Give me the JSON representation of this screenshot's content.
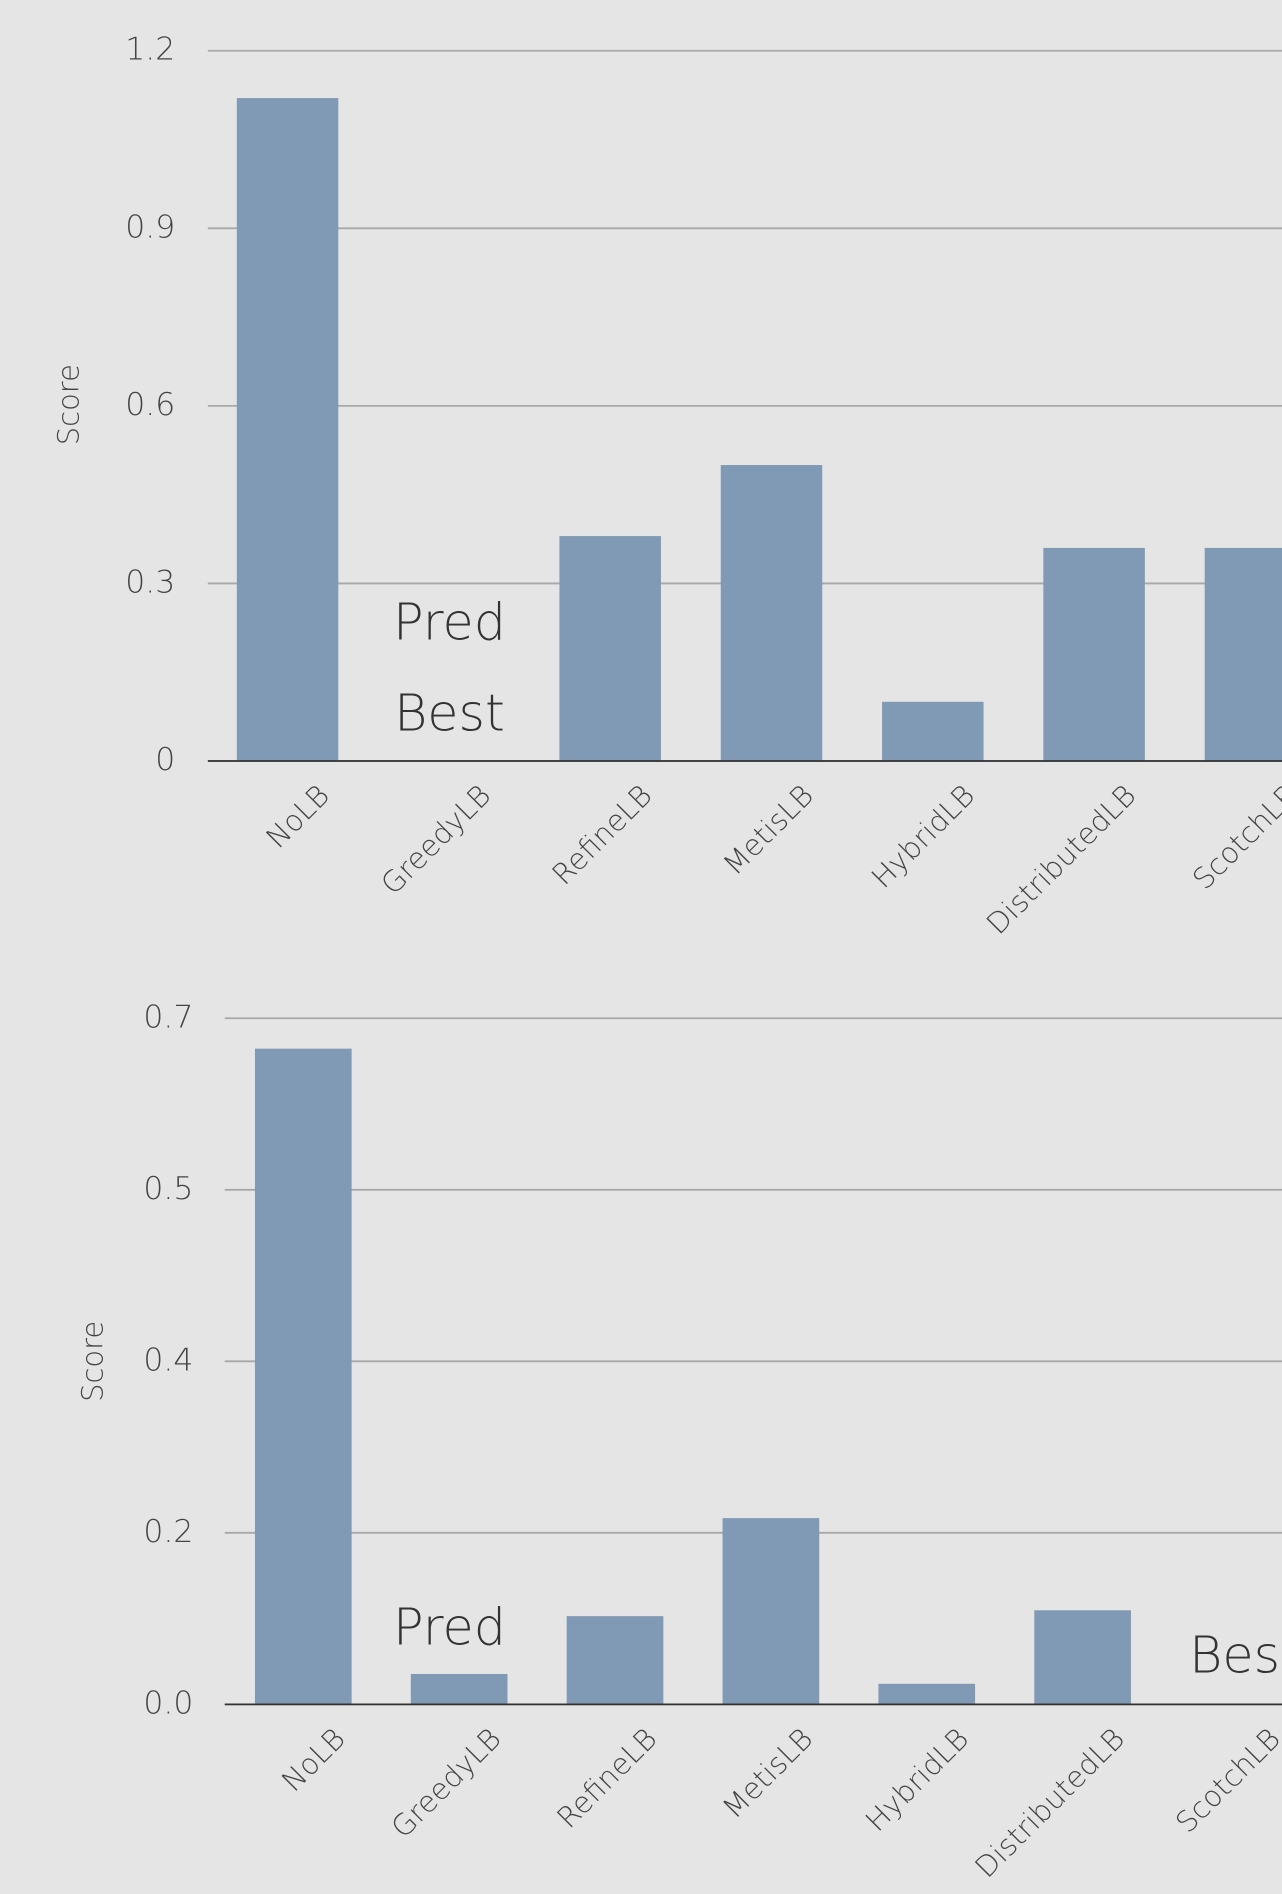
{
  "chart_data": [
    {
      "type": "bar",
      "y_label": "Score",
      "categories": [
        "NoLB",
        "GreedyLB",
        "RefineLB",
        "MetisLB",
        "HybridLB",
        "DistributedLB",
        "ScotchLB"
      ],
      "values": [
        1.12,
        0,
        0.38,
        0.5,
        0.1,
        0.36,
        0.36
      ],
      "color": "#8099b4",
      "ylim": [
        0,
        1.2
      ],
      "yticks": [
        0,
        0.3,
        0.6,
        0.9,
        1.2
      ],
      "grid": true,
      "annotations": [
        "Pred",
        "Best"
      ]
    },
    {
      "type": "bar",
      "y_label": "Score",
      "categories": [
        "NoLB",
        "GreedyLB",
        "RefineLB",
        "MetisLB",
        "HybridLB",
        "DistributedLB",
        "ScotchLB"
      ],
      "values": [
        0.669,
        0.031,
        0.09,
        0.19,
        0.021,
        0.096,
        0
      ],
      "color": "#8099b4",
      "ylim": [
        0,
        0.7
      ],
      "yticks": [
        {
          "value": 0,
          "label": "0.0"
        },
        {
          "value": 0.175,
          "label": "0.2"
        },
        {
          "value": 0.35,
          "label": "0.4"
        },
        {
          "value": 0.525,
          "label": "0.5"
        },
        0.7
      ],
      "grid": true,
      "annotations": [
        "Pred",
        "Best"
      ]
    }
  ]
}
